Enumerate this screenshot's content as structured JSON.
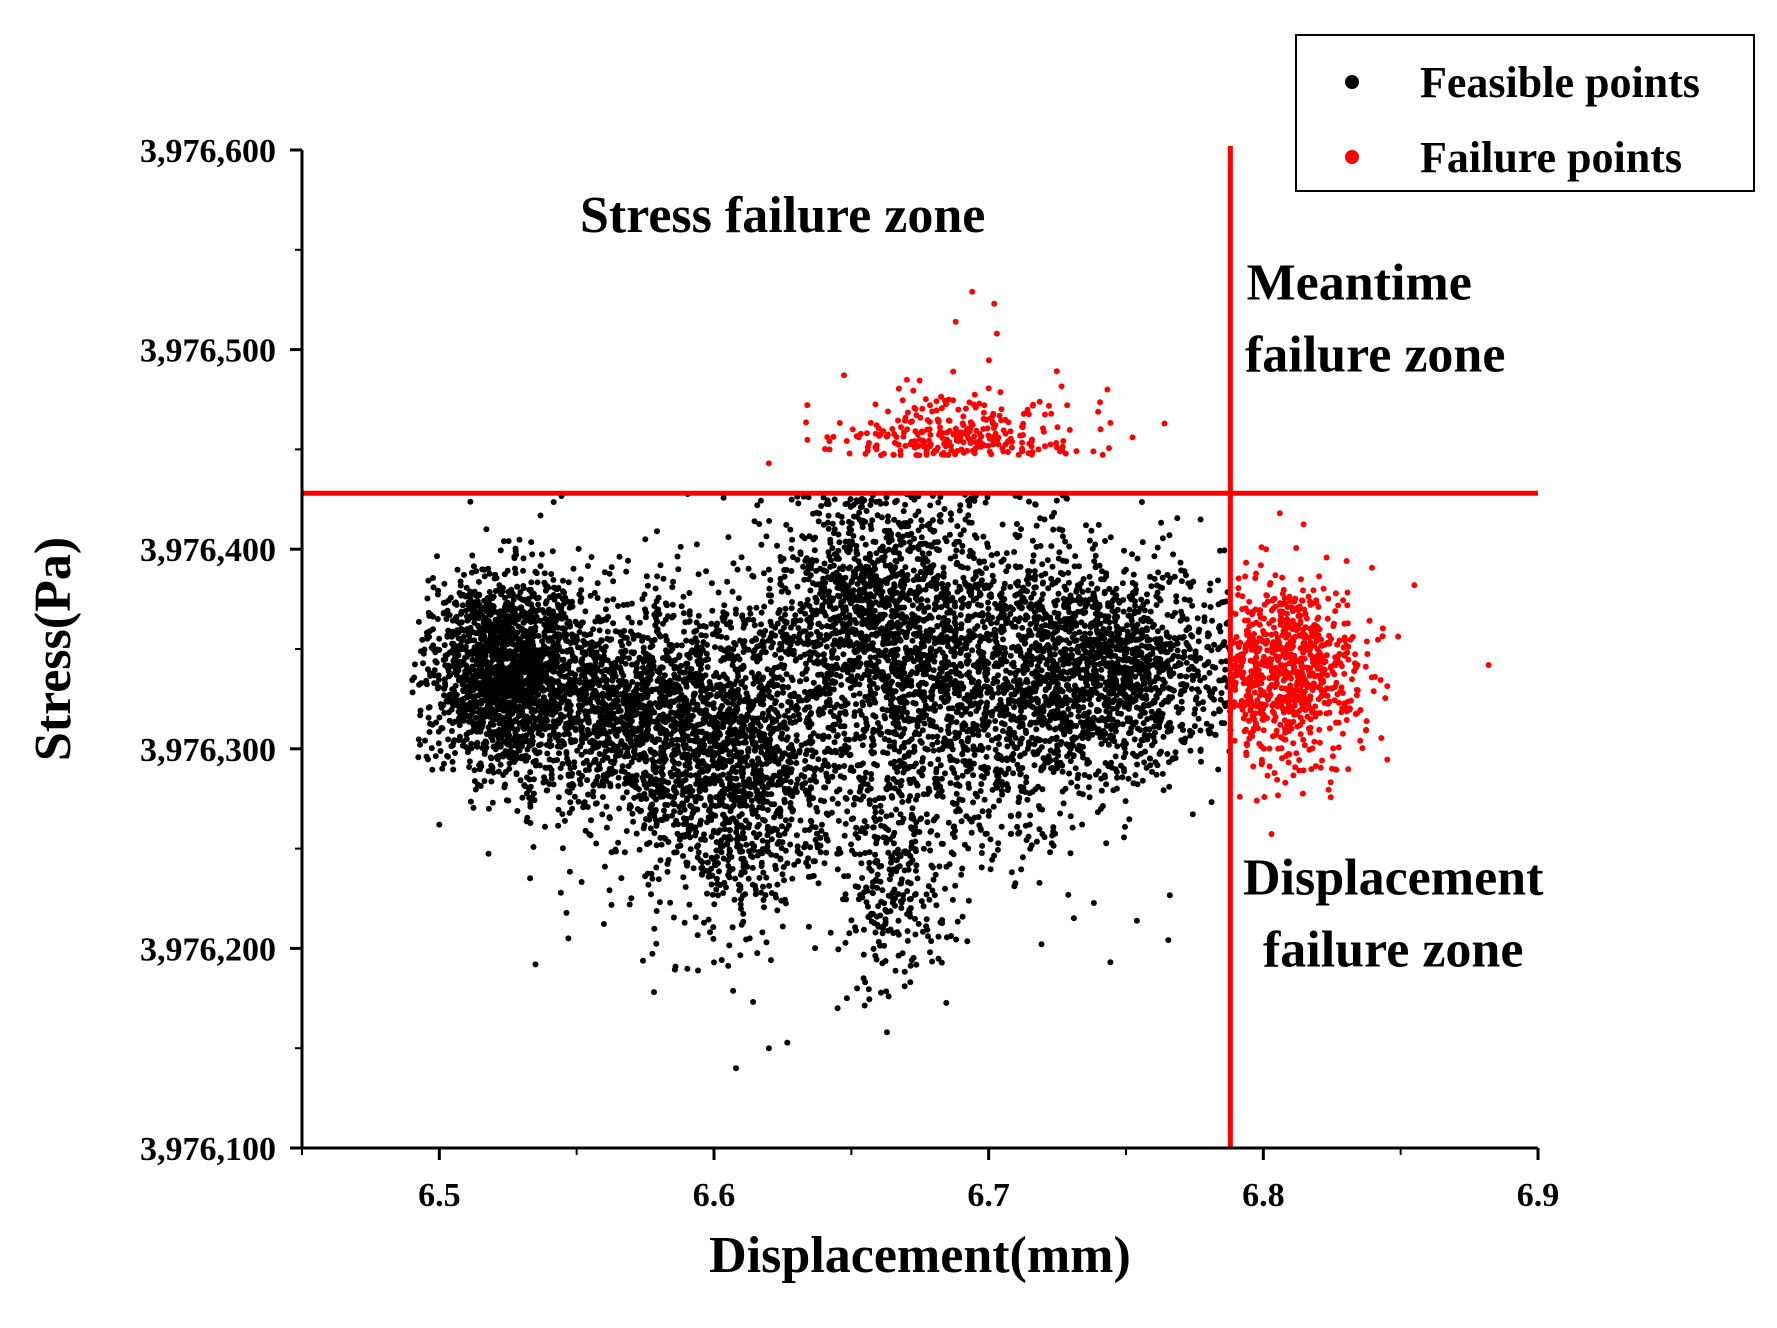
{
  "chart_data": {
    "type": "scatter",
    "title": "",
    "xlabel": "Displacement(mm)",
    "ylabel": "Stress(Pa)",
    "xlim": [
      6.45,
      6.9
    ],
    "ylim": [
      3976100,
      3976600
    ],
    "x_ticks": [
      6.5,
      6.6,
      6.7,
      6.8,
      6.9
    ],
    "x_tick_labels": [
      "6.5",
      "6.6",
      "6.7",
      "6.8",
      "6.9"
    ],
    "y_ticks": [
      3976100,
      3976200,
      3976300,
      3976400,
      3976500,
      3976600
    ],
    "y_tick_labels": [
      "3,976,100",
      "3,976,200",
      "3,976,300",
      "3,976,400",
      "3,976,500",
      "3,976,600"
    ],
    "grid": false,
    "legend_position": "top-right",
    "thresholds": {
      "stress_limit": 3976428,
      "displacement_limit": 6.788,
      "line_color": "#ff0000"
    },
    "series": [
      {
        "name": "Feasible points",
        "color": "#000000",
        "point_count": 9000,
        "clusters": [
          {
            "cx": 6.525,
            "cy": 3976340,
            "sx": 0.014,
            "sy": 24,
            "weight": 1800
          },
          {
            "cx": 6.57,
            "cy": 3976318,
            "sx": 0.022,
            "sy": 30,
            "weight": 1500
          },
          {
            "cx": 6.61,
            "cy": 3976290,
            "sx": 0.018,
            "sy": 38,
            "weight": 1300
          },
          {
            "cx": 6.655,
            "cy": 3976368,
            "sx": 0.02,
            "sy": 32,
            "weight": 1200
          },
          {
            "cx": 6.695,
            "cy": 3976330,
            "sx": 0.026,
            "sy": 44,
            "weight": 1500
          },
          {
            "cx": 6.745,
            "cy": 3976340,
            "sx": 0.022,
            "sy": 26,
            "weight": 1400
          },
          {
            "cx": 6.665,
            "cy": 3976240,
            "sx": 0.01,
            "sy": 30,
            "weight": 300
          }
        ],
        "outliers": [
          {
            "x": 6.493,
            "y": 3976302
          },
          {
            "x": 6.5,
            "y": 3976262
          },
          {
            "x": 6.535,
            "y": 3976192
          },
          {
            "x": 6.547,
            "y": 3976205
          },
          {
            "x": 6.608,
            "y": 3976140
          },
          {
            "x": 6.62,
            "y": 3976150
          },
          {
            "x": 6.663,
            "y": 3976158
          },
          {
            "x": 6.645,
            "y": 3976170
          },
          {
            "x": 6.575,
            "y": 3976405
          },
          {
            "x": 6.6,
            "y": 3976193
          },
          {
            "x": 6.613,
            "y": 3976205
          },
          {
            "x": 6.655,
            "y": 3976183
          }
        ]
      },
      {
        "name": "Failure points",
        "color": "#ff0000",
        "point_count": 1120,
        "clusters": [
          {
            "cx": 6.808,
            "cy": 3976338,
            "sx": 0.014,
            "sy": 22,
            "weight": 780
          },
          {
            "cx": 6.69,
            "cy": 3976447,
            "sx": 0.022,
            "sy": 14,
            "weight": 300
          }
        ],
        "outliers": [
          {
            "x": 6.694,
            "y": 3976529
          },
          {
            "x": 6.702,
            "y": 3976523
          },
          {
            "x": 6.688,
            "y": 3976514
          },
          {
            "x": 6.703,
            "y": 3976508
          },
          {
            "x": 6.62,
            "y": 3976443
          },
          {
            "x": 6.882,
            "y": 3976342
          },
          {
            "x": 6.806,
            "y": 3976418
          },
          {
            "x": 6.808,
            "y": 3976283
          },
          {
            "x": 6.764,
            "y": 3976463
          },
          {
            "x": 6.825,
            "y": 3976290
          },
          {
            "x": 6.801,
            "y": 3976400
          },
          {
            "x": 6.855,
            "y": 3976382
          }
        ]
      }
    ],
    "annotations": [
      {
        "text": "Stress failure zone",
        "x": 6.625,
        "y": 3976568
      },
      {
        "lines": [
          "Meantime",
          "failure zone"
        ],
        "x": 6.84,
        "y": 3976530
      },
      {
        "lines": [
          "Displacement",
          "failure zone"
        ],
        "x": 6.84,
        "y": 3976222
      }
    ]
  }
}
